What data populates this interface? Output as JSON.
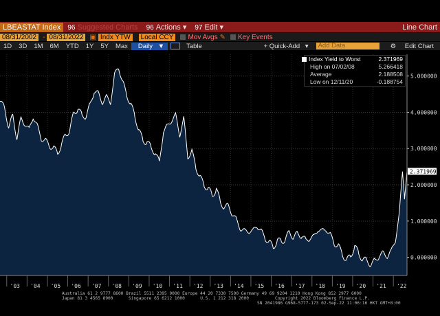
{
  "titlebar": {
    "ticker": "LBEASTAT Index",
    "menu_suggested_num": "96",
    "menu_suggested": "Suggested Charts",
    "menu_actions_num": "96",
    "menu_actions": "Actions",
    "menu_edit_num": "97",
    "menu_edit": "Edit",
    "window_title": "Line Chart"
  },
  "fieldrow": {
    "start_date": "08/31/2002",
    "end_date": "08/31/2022",
    "field": "Indx YTW",
    "currency": "Local CCY",
    "mov_avgs": "Mov Avgs",
    "key_events": "Key Events"
  },
  "periodrow": {
    "periods": [
      "1D",
      "3D",
      "1M",
      "6M",
      "YTD",
      "1Y",
      "5Y",
      "Max"
    ],
    "frequency": "Daily",
    "table": "Table",
    "quick_add": "+ Quick-Add",
    "add_data_placeholder": "Add Data",
    "edit_chart": "Edit Chart"
  },
  "legend": {
    "series_name": "Index Yield to Worst",
    "series_value": "2.371969",
    "high_label": "High on 07/02/08",
    "high_value": "5.266418",
    "avg_label": "Average",
    "avg_value": "2.188508",
    "low_label": "Low on 12/11/20",
    "low_value": "-0.188754"
  },
  "colors": {
    "titlebar_bg": "#8b1a1a",
    "area_fill": "#0c2440",
    "line": "#ffffff",
    "last_value_tag": "#ffffff"
  },
  "chart_data": {
    "type": "area",
    "x": [
      2002.67,
      2002.9,
      2003.1,
      2003.3,
      2003.5,
      2003.7,
      2003.9,
      2004.1,
      2004.3,
      2004.5,
      2004.7,
      2004.9,
      2005.1,
      2005.3,
      2005.5,
      2005.7,
      2005.9,
      2006.1,
      2006.3,
      2006.5,
      2006.7,
      2006.9,
      2007.1,
      2007.3,
      2007.5,
      2007.7,
      2007.9,
      2008.1,
      2008.3,
      2008.5,
      2008.7,
      2008.9,
      2009.1,
      2009.3,
      2009.5,
      2009.7,
      2009.9,
      2010.1,
      2010.3,
      2010.5,
      2010.7,
      2010.9,
      2011.1,
      2011.3,
      2011.5,
      2011.7,
      2011.9,
      2012.1,
      2012.3,
      2012.5,
      2012.7,
      2012.9,
      2013.1,
      2013.3,
      2013.5,
      2013.7,
      2013.9,
      2014.1,
      2014.3,
      2014.5,
      2014.7,
      2014.9,
      2015.1,
      2015.3,
      2015.5,
      2015.7,
      2015.9,
      2016.1,
      2016.3,
      2016.5,
      2016.7,
      2016.9,
      2017.1,
      2017.3,
      2017.5,
      2017.7,
      2017.9,
      2018.1,
      2018.3,
      2018.5,
      2018.7,
      2018.9,
      2019.1,
      2019.3,
      2019.5,
      2019.7,
      2019.9,
      2020.1,
      2020.3,
      2020.5,
      2020.7,
      2020.9,
      2021.1,
      2021.3,
      2021.5,
      2021.7,
      2021.9,
      2022.1,
      2022.3,
      2022.45,
      2022.55,
      2022.67
    ],
    "values": [
      4.3,
      4.1,
      3.6,
      3.9,
      3.3,
      3.8,
      3.7,
      3.5,
      3.9,
      3.6,
      3.3,
      3.2,
      3.1,
      3.0,
      2.9,
      3.1,
      3.4,
      3.5,
      4.0,
      4.1,
      3.9,
      3.9,
      4.2,
      4.6,
      4.5,
      4.3,
      4.4,
      4.3,
      5.0,
      5.27,
      4.8,
      4.5,
      4.2,
      3.9,
      3.5,
      3.2,
      3.2,
      3.0,
      2.9,
      2.6,
      3.5,
      3.6,
      3.8,
      3.9,
      3.4,
      3.8,
      2.8,
      2.9,
      2.5,
      2.2,
      2.0,
      1.9,
      1.7,
      1.9,
      1.5,
      1.4,
      1.4,
      1.2,
      1.0,
      0.8,
      0.7,
      0.75,
      0.7,
      0.9,
      0.7,
      0.55,
      0.4,
      0.3,
      0.45,
      0.45,
      0.5,
      0.7,
      0.55,
      0.65,
      0.6,
      0.45,
      0.55,
      0.55,
      0.8,
      0.7,
      0.8,
      0.6,
      0.4,
      0.3,
      0.1,
      -0.1,
      0.05,
      0.3,
      0.1,
      -0.05,
      -0.1,
      -0.19,
      -0.1,
      0.05,
      0.1,
      0.05,
      0.15,
      0.5,
      1.2,
      2.45,
      1.6,
      2.371969
    ],
    "ylabel_ticks": [
      "0.000000",
      "1.000000",
      "2.000000",
      "3.000000",
      "4.000000",
      "5.000000"
    ],
    "xlabel_ticks": [
      "'03",
      "'04",
      "'05",
      "'06",
      "'07",
      "'08",
      "'09",
      "'10",
      "'11",
      "'12",
      "'13",
      "'14",
      "'15",
      "'16",
      "'17",
      "'18",
      "'19",
      "'20",
      "'21",
      "'22"
    ],
    "ylim": [
      -0.5,
      5.6
    ],
    "xlim": [
      2002.67,
      2022.67
    ],
    "last_value_label": "2.371969",
    "grid": true,
    "legend_position": "top-right"
  },
  "footer": {
    "line1": "Australia 61 2 9777 8600 Brazil 5511 2395 9000 Europe 44 20 7330 7500 Germany 49 69 9204 1210 Hong Kong 852 2977 6000",
    "line2a": "Japan 81 3 4565 8900",
    "line2b": "Singapore 65 6212 1000",
    "line2c": "U.S. 1 212 318 2000",
    "line2d": "Copyright 2022 Bloomberg Finance L.P.",
    "line3": "SN 2041986 G968-5777-173 02-Sep-22 11:06:16 HKT GMT+8:00"
  }
}
